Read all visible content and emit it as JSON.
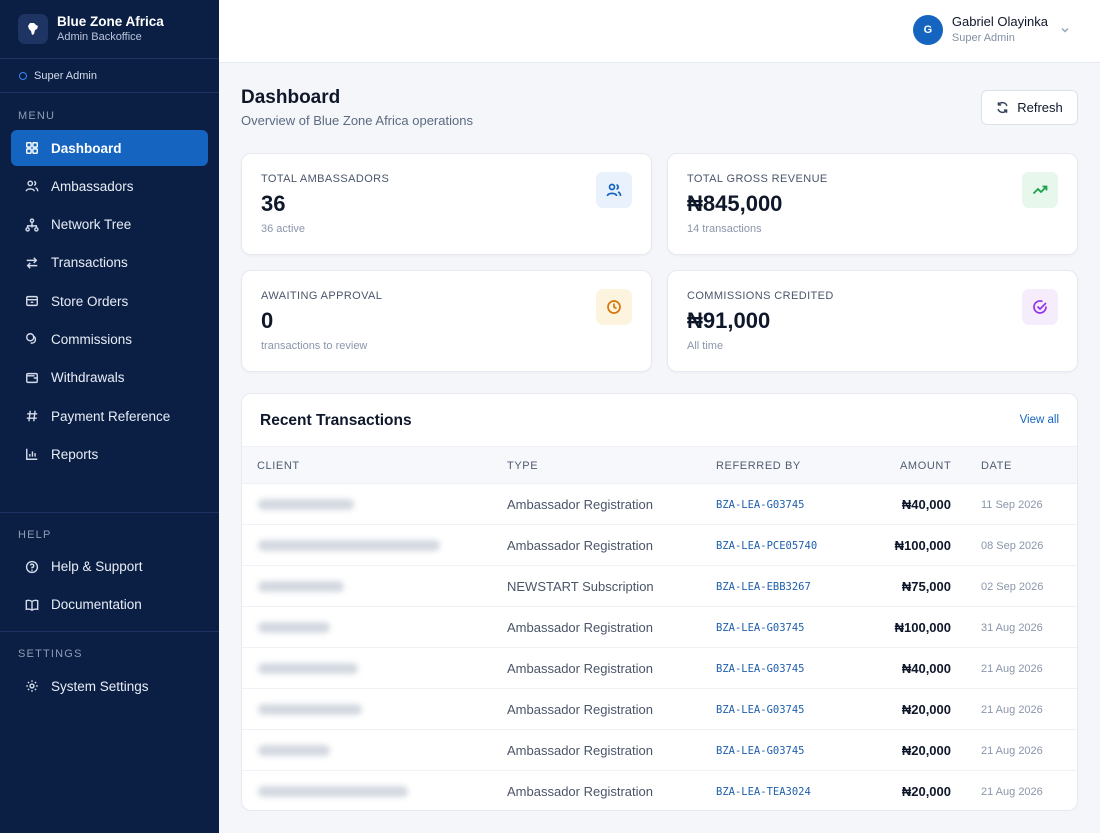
{
  "brand": {
    "name": "Blue Zone Africa",
    "subtitle": "Admin Backoffice"
  },
  "role_badge": "Super Admin",
  "sidebar": {
    "menu_label": "MENU",
    "menu": [
      {
        "label": "Dashboard",
        "icon": "grid-icon",
        "active": true
      },
      {
        "label": "Ambassadors",
        "icon": "users-icon"
      },
      {
        "label": "Network Tree",
        "icon": "network-icon"
      },
      {
        "label": "Transactions",
        "icon": "arrows-icon"
      },
      {
        "label": "Store Orders",
        "icon": "box-icon"
      },
      {
        "label": "Commissions",
        "icon": "coins-icon"
      },
      {
        "label": "Withdrawals",
        "icon": "wallet-icon"
      },
      {
        "label": "Payment Reference",
        "icon": "hash-icon"
      },
      {
        "label": "Reports",
        "icon": "bar-chart-icon"
      }
    ],
    "help_label": "HELP",
    "help": [
      {
        "label": "Help & Support",
        "icon": "help-circle-icon"
      },
      {
        "label": "Documentation",
        "icon": "book-icon"
      }
    ],
    "settings_label": "SETTINGS",
    "settings": [
      {
        "label": "System Settings",
        "icon": "gear-icon"
      }
    ]
  },
  "user": {
    "initial": "G",
    "name": "Gabriel Olayinka",
    "role": "Super Admin"
  },
  "page": {
    "title": "Dashboard",
    "subtitle": "Overview of Blue Zone Africa operations",
    "refresh_label": "Refresh"
  },
  "stats": [
    {
      "label": "TOTAL AMBASSADORS",
      "value": "36",
      "sub": "36 active",
      "icon": "users-icon",
      "color": "#1565c0",
      "bg": "#e8f1fc"
    },
    {
      "label": "TOTAL GROSS REVENUE",
      "value": "₦845,000",
      "sub": "14 transactions",
      "icon": "trending-up-icon",
      "color": "#16a34a",
      "bg": "#e7f7ec"
    },
    {
      "label": "AWAITING APPROVAL",
      "value": "0",
      "sub": "transactions to review",
      "icon": "clock-icon",
      "color": "#d97706",
      "bg": "#fdf4e0"
    },
    {
      "label": "COMMISSIONS CREDITED",
      "value": "₦91,000",
      "sub": "All time",
      "icon": "check-badge-icon",
      "color": "#9333ea",
      "bg": "#f5ecfc"
    }
  ],
  "transactions": {
    "title": "Recent Transactions",
    "view_all": "View all",
    "columns": [
      "CLIENT",
      "TYPE",
      "REFERRED BY",
      "AMOUNT",
      "DATE"
    ],
    "rows": [
      {
        "type": "Ambassador Registration",
        "ref": "BZA-LEA-G03745",
        "amount": "₦40,000",
        "date": "11 Sep 2026"
      },
      {
        "type": "Ambassador Registration",
        "ref": "BZA-LEA-PCE05740",
        "amount": "₦100,000",
        "date": "08 Sep 2026"
      },
      {
        "type": "NEWSTART Subscription",
        "ref": "BZA-LEA-EBB3267",
        "amount": "₦75,000",
        "date": "02 Sep 2026"
      },
      {
        "type": "Ambassador Registration",
        "ref": "BZA-LEA-G03745",
        "amount": "₦100,000",
        "date": "31 Aug 2026"
      },
      {
        "type": "Ambassador Registration",
        "ref": "BZA-LEA-G03745",
        "amount": "₦40,000",
        "date": "21 Aug 2026"
      },
      {
        "type": "Ambassador Registration",
        "ref": "BZA-LEA-G03745",
        "amount": "₦20,000",
        "date": "21 Aug 2026"
      },
      {
        "type": "Ambassador Registration",
        "ref": "BZA-LEA-G03745",
        "amount": "₦20,000",
        "date": "21 Aug 2026"
      },
      {
        "type": "Ambassador Registration",
        "ref": "BZA-LEA-TEA3024",
        "amount": "₦20,000",
        "date": "21 Aug 2026"
      }
    ]
  }
}
